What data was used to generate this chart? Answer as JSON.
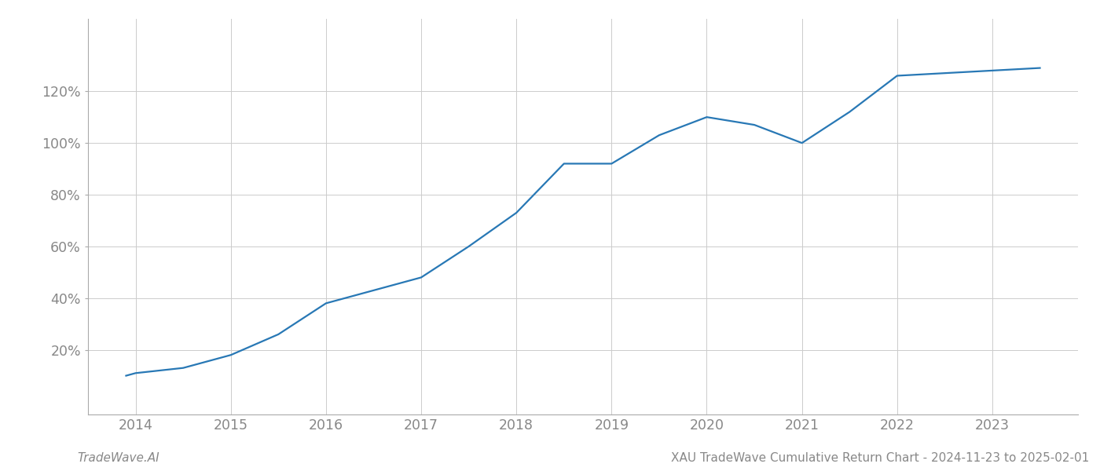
{
  "x_years": [
    2013.9,
    2014.0,
    2014.5,
    2015.0,
    2015.5,
    2016.0,
    2016.5,
    2017.0,
    2017.5,
    2018.0,
    2018.5,
    2019.0,
    2019.5,
    2020.0,
    2020.5,
    2021.0,
    2021.5,
    2022.0,
    2022.5,
    2023.0,
    2023.5
  ],
  "y_values": [
    10,
    11,
    13,
    18,
    26,
    38,
    43,
    48,
    60,
    73,
    92,
    92,
    103,
    110,
    107,
    100,
    112,
    126,
    127,
    128,
    129
  ],
  "line_color": "#2878b5",
  "line_width": 1.6,
  "title": "XAU TradeWave Cumulative Return Chart - 2024-11-23 to 2025-02-01",
  "watermark": "TradeWave.AI",
  "bg_color": "#ffffff",
  "grid_color": "#cccccc",
  "tick_color": "#888888",
  "ylim": [
    -5,
    148
  ],
  "yticks": [
    20,
    40,
    60,
    80,
    100,
    120
  ],
  "xlim": [
    2013.5,
    2023.9
  ],
  "xticks": [
    2014,
    2015,
    2016,
    2017,
    2018,
    2019,
    2020,
    2021,
    2022,
    2023
  ],
  "title_fontsize": 11,
  "watermark_fontsize": 11,
  "tick_fontsize": 12.5
}
